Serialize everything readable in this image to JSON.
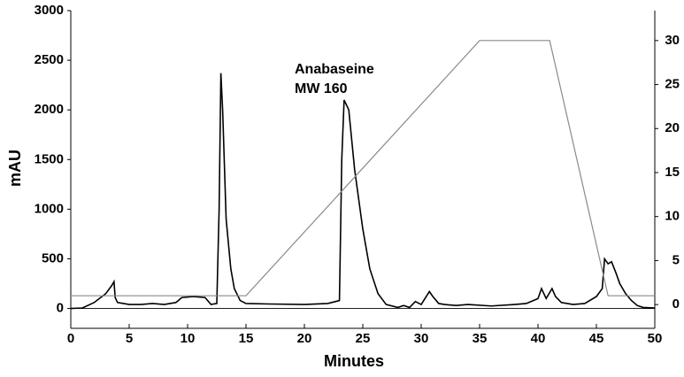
{
  "chart_data": {
    "type": "line",
    "xlabel": "Minutes",
    "ylabel": "mAU",
    "annotation": [
      "Anabaseine",
      "MW 160"
    ],
    "xlim": [
      0,
      50
    ],
    "xticks": [
      0,
      5,
      10,
      15,
      20,
      25,
      30,
      35,
      40,
      45,
      50
    ],
    "ylim": [
      -200,
      3000
    ],
    "yticks": [
      0,
      500,
      1000,
      1500,
      2000,
      2500,
      3000
    ],
    "y2lim": [
      -2.7,
      33.4
    ],
    "y2ticks": [
      0,
      5,
      10,
      15,
      20,
      25,
      30
    ],
    "series": [
      {
        "color": "#000000",
        "x": [
          0,
          1,
          2,
          3,
          3.5,
          3.7,
          3.8,
          4,
          5,
          6,
          7,
          8,
          9,
          9.5,
          10.5,
          11.5,
          12,
          12.5,
          12.7,
          12.85,
          13.0,
          13.3,
          13.7,
          14,
          14.5,
          15,
          17,
          20,
          22,
          23,
          23.2,
          23.4,
          23.8,
          24.3,
          25,
          25.6,
          26.3,
          27,
          28,
          28.5,
          29,
          29.5,
          30,
          30.7,
          31,
          31.5,
          32,
          33,
          34,
          36,
          38,
          39,
          40,
          40.3,
          40.7,
          41.2,
          41.5,
          42,
          43,
          44,
          45,
          45.5,
          45.7,
          46,
          46.3,
          46.7,
          47,
          47.5,
          48,
          48.5,
          49,
          50
        ],
        "values": [
          0,
          5,
          60,
          150,
          230,
          270,
          110,
          60,
          40,
          40,
          50,
          40,
          60,
          110,
          120,
          110,
          40,
          50,
          1000,
          2370,
          2000,
          900,
          400,
          200,
          80,
          50,
          45,
          40,
          50,
          80,
          1500,
          2100,
          2000,
          1400,
          800,
          400,
          150,
          40,
          10,
          30,
          10,
          70,
          40,
          170,
          120,
          50,
          40,
          30,
          40,
          25,
          40,
          50,
          100,
          200,
          100,
          200,
          120,
          60,
          40,
          50,
          120,
          200,
          500,
          450,
          470,
          350,
          250,
          150,
          80,
          30,
          10,
          5
        ]
      },
      {
        "color": "#8a8a8a",
        "axis": "y2",
        "x": [
          0,
          15,
          35,
          41,
          46,
          50
        ],
        "values": [
          1,
          1,
          30,
          30,
          1,
          1
        ]
      }
    ]
  }
}
